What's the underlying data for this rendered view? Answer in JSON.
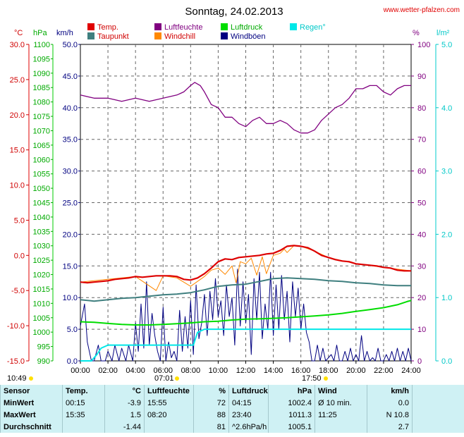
{
  "title": "Sonntag, 24.02.2013",
  "site": "www.wetter-pfalzen.com",
  "legend": [
    {
      "label": "Temp.",
      "color": "#e00000",
      "text_color": "#d00000"
    },
    {
      "label": "Luftfeuchte",
      "color": "#800080",
      "text_color": "#800080"
    },
    {
      "label": "Luftdruck",
      "color": "#00dd00",
      "text_color": "#00aa00"
    },
    {
      "label": "Regen°",
      "color": "#00e8e8",
      "text_color": "#00c8c8"
    },
    {
      "label": "Taupunkt",
      "color": "#3f7f7f",
      "text_color": "#d00000"
    },
    {
      "label": "Windchill",
      "color": "#ff8800",
      "text_color": "#d00000"
    },
    {
      "label": "Windböen",
      "color": "#000080",
      "text_color": "#000080"
    }
  ],
  "axis_units": {
    "temp": "°C",
    "pressure": "hPa",
    "wind": "km/h",
    "humidity": "%",
    "rain": "l/m²"
  },
  "axis_ticks": {
    "temp": [
      "30.0",
      "25.0",
      "20.0",
      "15.0",
      "10.0",
      "5.0",
      "0.0",
      "-5.0",
      "-10.0",
      "-15.0"
    ],
    "pressure": [
      "1100",
      "1095",
      "1090",
      "1085",
      "1080",
      "1075",
      "1070",
      "1065",
      "1060",
      "1055",
      "1050",
      "1045",
      "1040",
      "1035",
      "1030",
      "1025",
      "1020",
      "1015",
      "1010",
      "1005",
      "1000",
      "995",
      "990"
    ],
    "wind": [
      "50.0",
      "45.0",
      "40.0",
      "35.0",
      "30.0",
      "25.0",
      "20.0",
      "15.0",
      "10.0",
      "5.0",
      "0.0"
    ],
    "humidity": [
      "100",
      "90",
      "80",
      "70",
      "60",
      "50",
      "40",
      "30",
      "20",
      "10",
      "0"
    ],
    "rain": [
      "5.0",
      "4.0",
      "3.0",
      "2.0",
      "1.0",
      "0.0"
    ],
    "time": [
      "00:00",
      "02:00",
      "04:00",
      "06:00",
      "08:00",
      "10:00",
      "12:00",
      "14:00",
      "16:00",
      "18:00",
      "20:00",
      "22:00",
      "24:00"
    ]
  },
  "sun": {
    "rise_label": "07:01",
    "set_label": "17:50",
    "left_label": "10:49"
  },
  "table": {
    "headers": [
      "Sensor",
      "Temp.",
      "°C",
      "Luftfeuchte",
      "%",
      "Luftdruck",
      "hPa",
      "Wind",
      "km/h"
    ],
    "rows": [
      [
        "MinWert",
        "00:15",
        "-3.9",
        "15:55",
        "72",
        "04:15",
        "1002.4",
        "Ø 10 min.",
        "0.0"
      ],
      [
        "MaxWert",
        "15:35",
        "1.5",
        "08:20",
        "88",
        "23:40",
        "1011.3",
        "11:25",
        "N 10.8"
      ],
      [
        "Durchschnitt",
        "",
        "-1.44",
        "",
        "81",
        "^2.6hPa/h",
        "1005.1",
        "",
        "2.7"
      ]
    ]
  },
  "chart_data": {
    "type": "line",
    "title": "Sonntag, 24.02.2013",
    "x_unit": "hour",
    "x_range": [
      0,
      24
    ],
    "grid": true,
    "legend_position": "top",
    "axes": {
      "temp_C": [
        -15,
        30
      ],
      "pressure_hPa": [
        990,
        1100
      ],
      "wind_kmh": [
        0,
        50
      ],
      "humidity_pct": [
        0,
        100
      ],
      "rain_lm2": [
        0,
        5
      ]
    },
    "series": [
      {
        "name": "Temp.",
        "unit": "°C",
        "color": "#dd0000",
        "x": [
          0,
          0.5,
          1,
          1.5,
          2,
          2.5,
          3,
          3.5,
          4,
          4.5,
          5,
          5.5,
          6,
          6.5,
          7,
          7.5,
          8,
          8.5,
          9,
          9.5,
          10,
          10.5,
          11,
          11.5,
          12,
          12.5,
          13,
          13.5,
          14,
          14.5,
          15,
          15.5,
          16,
          16.5,
          17,
          17.5,
          18,
          18.5,
          19,
          19.5,
          20,
          20.5,
          21,
          21.5,
          22,
          22.5,
          23,
          23.5,
          24
        ],
        "y": [
          -3.8,
          -3.9,
          -3.8,
          -3.7,
          -3.6,
          -3.4,
          -3.3,
          -3.2,
          -3.0,
          -3.1,
          -3.0,
          -2.9,
          -2.9,
          -2.9,
          -3.0,
          -3.4,
          -3.5,
          -3.2,
          -2.6,
          -1.8,
          -0.9,
          -0.5,
          -0.6,
          -0.3,
          -0.2,
          -0.1,
          0.0,
          0.2,
          0.3,
          0.7,
          1.3,
          1.4,
          1.3,
          1.1,
          0.6,
          0.0,
          -0.3,
          -0.6,
          -0.8,
          -0.9,
          -1.2,
          -1.3,
          -1.4,
          -1.5,
          -1.7,
          -1.8,
          -2.1,
          -2.2,
          -2.2
        ]
      },
      {
        "name": "Taupunkt",
        "unit": "°C",
        "color": "#3f7f7f",
        "x": [
          0,
          1,
          2,
          3,
          4,
          5,
          6,
          7,
          8,
          9,
          10,
          11,
          12,
          13,
          14,
          15,
          16,
          17,
          18,
          19,
          20,
          21,
          22,
          23,
          24
        ],
        "y": [
          -6.3,
          -6.5,
          -6.3,
          -6.1,
          -6.0,
          -5.8,
          -5.6,
          -5.5,
          -5.3,
          -4.9,
          -4.4,
          -4.2,
          -4.1,
          -3.7,
          -3.3,
          -3.2,
          -3.3,
          -3.4,
          -3.6,
          -3.7,
          -3.9,
          -4.0,
          -4.2,
          -4.3,
          -4.3
        ]
      },
      {
        "name": "Windchill",
        "unit": "°C",
        "color": "#ff8800",
        "x": [
          0,
          4,
          5.5,
          6,
          7,
          8,
          9,
          9.5,
          10,
          10.5,
          11,
          11.3,
          11.6,
          12,
          12.4,
          12.8,
          13.2,
          13.5,
          14,
          14.5,
          14.8,
          15,
          15.5,
          16,
          17,
          18,
          20,
          22,
          24
        ],
        "y": [
          -3.8,
          -3.0,
          -5.0,
          -2.9,
          -3.2,
          -4.4,
          -3.0,
          -2.1,
          -1.8,
          -2.7,
          -1.5,
          -3.9,
          -0.9,
          -1.2,
          -0.4,
          -2.8,
          -0.2,
          -2.6,
          0.0,
          0.3,
          0.9,
          0.4,
          1.4,
          1.3,
          0.6,
          -0.3,
          -1.2,
          -1.7,
          -2.2
        ]
      },
      {
        "name": "Luftfeuchte",
        "unit": "%",
        "color": "#800080",
        "x": [
          0,
          1,
          2,
          3,
          4,
          5,
          6,
          7,
          7.5,
          8,
          8.3,
          8.7,
          9,
          9.5,
          10,
          10.5,
          11,
          11.5,
          12,
          12.5,
          13,
          13.5,
          14,
          14.5,
          15,
          15.5,
          16,
          16.5,
          17,
          17.5,
          18,
          18.5,
          19,
          19.5,
          20,
          20.5,
          21,
          21.5,
          22,
          22.5,
          23,
          23.5,
          24
        ],
        "y": [
          84,
          83,
          83,
          82,
          83,
          82,
          83,
          84,
          85,
          87,
          88,
          87,
          85,
          81,
          80,
          77,
          77,
          75,
          74,
          76,
          77,
          75,
          75,
          76,
          75,
          73,
          72,
          72,
          73,
          76,
          78,
          80,
          81,
          83,
          86,
          86,
          87,
          87,
          85,
          84,
          86,
          87,
          87
        ]
      },
      {
        "name": "Luftdruck",
        "unit": "hPa",
        "color": "#00dd00",
        "x": [
          0,
          1,
          2,
          3,
          4,
          5,
          6,
          7,
          8,
          9,
          10,
          11,
          12,
          13,
          14,
          15,
          16,
          17,
          18,
          19,
          20,
          21,
          22,
          23,
          23.7,
          24
        ],
        "y": [
          1003.6,
          1003.4,
          1003.0,
          1002.7,
          1002.5,
          1002.5,
          1002.7,
          1002.9,
          1003.2,
          1003.6,
          1003.8,
          1004.2,
          1004.5,
          1004.6,
          1004.8,
          1005.0,
          1005.3,
          1005.6,
          1006.0,
          1006.5,
          1007.2,
          1007.8,
          1008.5,
          1009.5,
          1010.6,
          1011.0
        ]
      },
      {
        "name": "Regen°",
        "unit": "l/m²",
        "color": "#00e8e8",
        "x": [
          0,
          0.8,
          1.2,
          1.5,
          2,
          5,
          7.5,
          8.2,
          8.5,
          9,
          18,
          24
        ],
        "y": [
          0,
          0,
          0.1,
          0.2,
          0.25,
          0.25,
          0.25,
          0.25,
          0.45,
          0.5,
          0.5,
          0.5
        ]
      },
      {
        "name": "Windböen",
        "unit": "km/h",
        "color": "#000080",
        "x": [
          0,
          0.3,
          0.5,
          0.8,
          1.0,
          1.3,
          1.5,
          1.8,
          2.0,
          2.3,
          2.5,
          2.8,
          3.0,
          3.3,
          3.5,
          3.8,
          4.0,
          4.2,
          4.4,
          4.6,
          4.8,
          5.0,
          5.2,
          5.4,
          5.6,
          5.8,
          6.0,
          6.2,
          6.4,
          6.6,
          6.8,
          7.0,
          7.2,
          7.4,
          7.6,
          7.8,
          8.0,
          8.2,
          8.4,
          8.6,
          8.8,
          9.0,
          9.2,
          9.4,
          9.6,
          9.8,
          10.0,
          10.2,
          10.4,
          10.6,
          10.8,
          11.0,
          11.2,
          11.4,
          11.6,
          11.8,
          12.0,
          12.2,
          12.4,
          12.6,
          12.8,
          13.0,
          13.2,
          13.4,
          13.6,
          13.8,
          14.0,
          14.2,
          14.4,
          14.6,
          14.8,
          15.0,
          15.2,
          15.4,
          15.6,
          15.8,
          16.0,
          16.2,
          16.4,
          16.6,
          16.8,
          17.0,
          17.2,
          17.4,
          17.6,
          17.8,
          18.0,
          18.2,
          18.4,
          18.6,
          18.8,
          19.0,
          19.2,
          19.4,
          19.6,
          19.8,
          20.0,
          20.2,
          20.4,
          20.6,
          20.8,
          21.0,
          21.2,
          21.4,
          21.6,
          21.8,
          22.0,
          22.2,
          22.4,
          22.6,
          22.8,
          23.0,
          23.2,
          23.4,
          23.6,
          23.8,
          24.0
        ],
        "y": [
          5.5,
          9.0,
          3.0,
          0.0,
          0.0,
          2.5,
          0.0,
          0.0,
          1.5,
          0.0,
          2.5,
          0.0,
          2.0,
          0.0,
          2.5,
          0.0,
          6.0,
          1.5,
          9.0,
          2.0,
          12.5,
          2.5,
          7.5,
          4.0,
          1.5,
          0.0,
          8.5,
          0.0,
          3.0,
          0.5,
          1.5,
          0.0,
          8.0,
          1.5,
          7.0,
          2.0,
          9.5,
          1.0,
          12.0,
          3.5,
          6.0,
          10.5,
          4.0,
          11.0,
          6.5,
          13.0,
          7.0,
          9.5,
          4.0,
          12.0,
          7.0,
          10.0,
          2.5,
          14.5,
          5.5,
          12.5,
          6.0,
          10.5,
          1.0,
          13.0,
          6.5,
          14.0,
          3.5,
          9.0,
          5.0,
          14.0,
          4.0,
          12.0,
          5.0,
          13.5,
          6.5,
          11.0,
          3.0,
          12.5,
          7.0,
          11.5,
          5.0,
          9.0,
          4.5,
          3.0,
          0.0,
          0.0,
          2.5,
          0.0,
          2.0,
          0.0,
          0.5,
          1.0,
          0.0,
          2.5,
          0.0,
          0.0,
          1.5,
          0.0,
          2.0,
          0.0,
          1.0,
          0.0,
          4.0,
          0.0,
          1.5,
          0.0,
          0.5,
          0.0,
          2.0,
          0.0,
          0.0,
          1.0,
          0.0,
          1.5,
          0.0,
          2.0,
          0.0,
          1.5,
          0.0,
          2.0,
          0.0
        ]
      }
    ]
  }
}
